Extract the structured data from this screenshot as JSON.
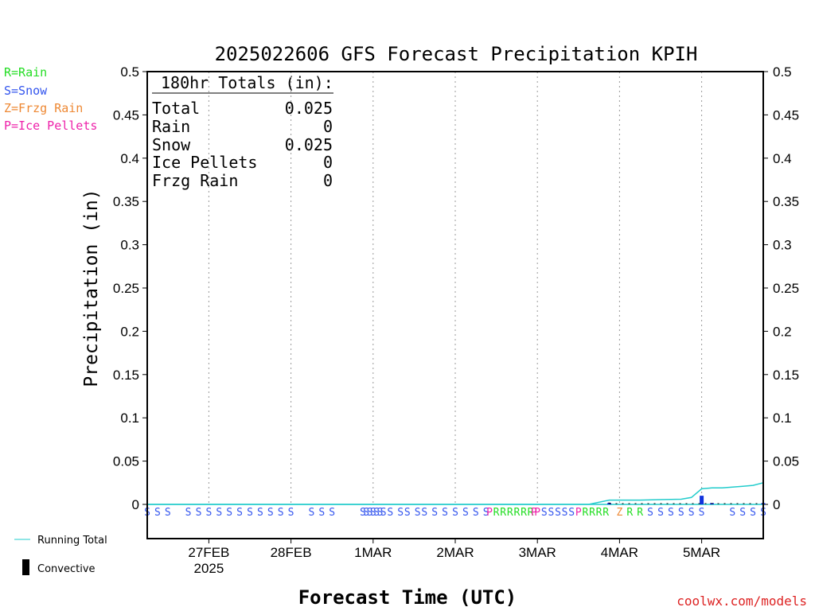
{
  "chart_data": {
    "type": "bar",
    "title": "2025022606 GFS Forecast Precipitation KPIH",
    "ylabel": "Precipitation (in)",
    "xlabel": "Forecast Time (UTC)",
    "ylim": [
      0,
      0.5
    ],
    "y_ticks": [
      "0",
      "0.05",
      "0.1",
      "0.15",
      "0.2",
      "0.25",
      "0.3",
      "0.35",
      "0.4",
      "0.45",
      "0.5"
    ],
    "x_start": "2025-02-26T06:00Z",
    "x_end": "2025-03-05T18:00Z",
    "x_ticks": [
      {
        "t": "2025-02-27T00:00Z",
        "label": "27FEB",
        "sublabel": "2025"
      },
      {
        "t": "2025-02-28T00:00Z",
        "label": "28FEB",
        "sublabel": ""
      },
      {
        "t": "2025-03-01T00:00Z",
        "label": "1MAR",
        "sublabel": ""
      },
      {
        "t": "2025-03-02T00:00Z",
        "label": "2MAR",
        "sublabel": ""
      },
      {
        "t": "2025-03-03T00:00Z",
        "label": "3MAR",
        "sublabel": ""
      },
      {
        "t": "2025-03-04T00:00Z",
        "label": "4MAR",
        "sublabel": ""
      },
      {
        "t": "2025-03-05T00:00Z",
        "label": "5MAR",
        "sublabel": ""
      }
    ],
    "grid": true,
    "type_legend": [
      {
        "label": "R=Rain",
        "color": "#22dd22"
      },
      {
        "label": "S=Snow",
        "color": "#3355ee"
      },
      {
        "label": "Z=Frzg Rain",
        "color": "#ee8833"
      },
      {
        "label": "P=Ice Pellets",
        "color": "#ee22aa"
      }
    ],
    "totals_box": {
      "header": "180hr Totals (in):",
      "rows": [
        {
          "label": "Total",
          "value": "0.025"
        },
        {
          "label": "Rain",
          "value": "0"
        },
        {
          "label": "Snow",
          "value": "0.025"
        },
        {
          "label": "Ice Pellets",
          "value": "0"
        },
        {
          "label": "Frzg Rain",
          "value": "0"
        }
      ]
    },
    "series": [
      {
        "name": "Running Total",
        "color": "#22cccc",
        "points": [
          [
            "2025-02-26T06:00Z",
            0
          ],
          [
            "2025-03-03T15:00Z",
            0
          ],
          [
            "2025-03-03T21:00Z",
            0.005
          ],
          [
            "2025-03-04T06:00Z",
            0.005
          ],
          [
            "2025-03-04T12:00Z",
            0.0055
          ],
          [
            "2025-03-04T18:00Z",
            0.006
          ],
          [
            "2025-03-04T21:00Z",
            0.008
          ],
          [
            "2025-03-05T00:00Z",
            0.018
          ],
          [
            "2025-03-05T03:00Z",
            0.019
          ],
          [
            "2025-03-05T06:00Z",
            0.019
          ],
          [
            "2025-03-05T09:00Z",
            0.02
          ],
          [
            "2025-03-05T12:00Z",
            0.021
          ],
          [
            "2025-03-05T15:00Z",
            0.022
          ],
          [
            "2025-03-05T18:00Z",
            0.025
          ]
        ]
      },
      {
        "name": "Convective",
        "color": "#000000",
        "bars": [
          [
            "2025-03-03T21:00Z",
            0.002
          ],
          [
            "2025-03-05T00:00Z",
            0.001
          ],
          [
            "2025-03-05T03:00Z",
            0.0015
          ]
        ]
      },
      {
        "name": "Precipitation",
        "color": "#1133dd",
        "bars": [
          [
            "2025-03-03T21:00Z",
            0.0015
          ],
          [
            "2025-03-05T00:00Z",
            0.01
          ],
          [
            "2025-03-05T03:00Z",
            0.0015
          ],
          [
            "2025-03-05T18:00Z",
            0.0015
          ]
        ]
      }
    ],
    "ptype_codes": [
      [
        "2025-02-26T06:00Z",
        "S"
      ],
      [
        "2025-02-26T09:00Z",
        "S"
      ],
      [
        "2025-02-26T12:00Z",
        "S"
      ],
      [
        "2025-02-26T18:00Z",
        "S"
      ],
      [
        "2025-02-26T21:00Z",
        "S"
      ],
      [
        "2025-02-27T00:00Z",
        "S"
      ],
      [
        "2025-02-27T03:00Z",
        "S"
      ],
      [
        "2025-02-27T06:00Z",
        "S"
      ],
      [
        "2025-02-27T09:00Z",
        "S"
      ],
      [
        "2025-02-27T12:00Z",
        "S"
      ],
      [
        "2025-02-27T15:00Z",
        "S"
      ],
      [
        "2025-02-27T18:00Z",
        "S"
      ],
      [
        "2025-02-27T21:00Z",
        "S"
      ],
      [
        "2025-02-28T00:00Z",
        "S"
      ],
      [
        "2025-02-28T06:00Z",
        "S"
      ],
      [
        "2025-02-28T09:00Z",
        "S"
      ],
      [
        "2025-02-28T12:00Z",
        "S"
      ],
      [
        "2025-02-28T21:00Z",
        "S"
      ],
      [
        "2025-02-28T22:00Z",
        "S"
      ],
      [
        "2025-02-28T23:00Z",
        "S"
      ],
      [
        "2025-03-01T00:00Z",
        "S"
      ],
      [
        "2025-03-01T01:00Z",
        "S"
      ],
      [
        "2025-03-01T02:00Z",
        "S"
      ],
      [
        "2025-03-01T03:00Z",
        "S"
      ],
      [
        "2025-03-01T05:00Z",
        "S"
      ],
      [
        "2025-03-01T08:00Z",
        "S"
      ],
      [
        "2025-03-01T10:00Z",
        "S"
      ],
      [
        "2025-03-01T13:00Z",
        "S"
      ],
      [
        "2025-03-01T15:00Z",
        "S"
      ],
      [
        "2025-03-01T18:00Z",
        "S"
      ],
      [
        "2025-03-01T21:00Z",
        "S"
      ],
      [
        "2025-03-02T00:00Z",
        "S"
      ],
      [
        "2025-03-02T03:00Z",
        "S"
      ],
      [
        "2025-03-02T06:00Z",
        "S"
      ],
      [
        "2025-03-02T09:00Z",
        "S"
      ],
      [
        "2025-03-02T10:00Z",
        "P"
      ],
      [
        "2025-03-02T12:00Z",
        "R"
      ],
      [
        "2025-03-02T14:00Z",
        "R"
      ],
      [
        "2025-03-02T16:00Z",
        "R"
      ],
      [
        "2025-03-02T18:00Z",
        "R"
      ],
      [
        "2025-03-02T20:00Z",
        "R"
      ],
      [
        "2025-03-02T22:00Z",
        "R"
      ],
      [
        "2025-03-02T23:00Z",
        "P"
      ],
      [
        "2025-03-03T00:00Z",
        "P"
      ],
      [
        "2025-03-03T02:00Z",
        "S"
      ],
      [
        "2025-03-03T04:00Z",
        "S"
      ],
      [
        "2025-03-03T06:00Z",
        "S"
      ],
      [
        "2025-03-03T08:00Z",
        "S"
      ],
      [
        "2025-03-03T10:00Z",
        "S"
      ],
      [
        "2025-03-03T12:00Z",
        "P"
      ],
      [
        "2025-03-03T14:00Z",
        "R"
      ],
      [
        "2025-03-03T16:00Z",
        "R"
      ],
      [
        "2025-03-03T18:00Z",
        "R"
      ],
      [
        "2025-03-03T20:00Z",
        "R"
      ],
      [
        "2025-03-04T00:00Z",
        "Z"
      ],
      [
        "2025-03-04T03:00Z",
        "R"
      ],
      [
        "2025-03-04T06:00Z",
        "R"
      ],
      [
        "2025-03-04T09:00Z",
        "S"
      ],
      [
        "2025-03-04T12:00Z",
        "S"
      ],
      [
        "2025-03-04T15:00Z",
        "S"
      ],
      [
        "2025-03-04T18:00Z",
        "S"
      ],
      [
        "2025-03-04T21:00Z",
        "S"
      ],
      [
        "2025-03-05T00:00Z",
        "S"
      ],
      [
        "2025-03-05T09:00Z",
        "S"
      ],
      [
        "2025-03-05T12:00Z",
        "S"
      ],
      [
        "2025-03-05T15:00Z",
        "S"
      ],
      [
        "2025-03-05T18:00Z",
        "S"
      ],
      [
        "2025-03-05T21:00Z",
        "S"
      ],
      [
        "2025-03-06T03:00Z",
        "S"
      ],
      [
        "2025-03-06T06:00Z",
        "S"
      ],
      [
        "2025-03-06T09:00Z",
        "S"
      ],
      [
        "2025-03-06T12:00Z",
        "S"
      ]
    ]
  },
  "legend": {
    "running_total_label": "Running Total",
    "convective_label": "Convective"
  },
  "credit": "coolwx.com/models",
  "colors": {
    "running_total": "#22cccc",
    "convective": "#000000",
    "snow": "#3355ee",
    "rain": "#22dd22",
    "ice_pellets": "#ee22aa",
    "frzg_rain": "#ee8833",
    "credit": "#dd2222"
  }
}
